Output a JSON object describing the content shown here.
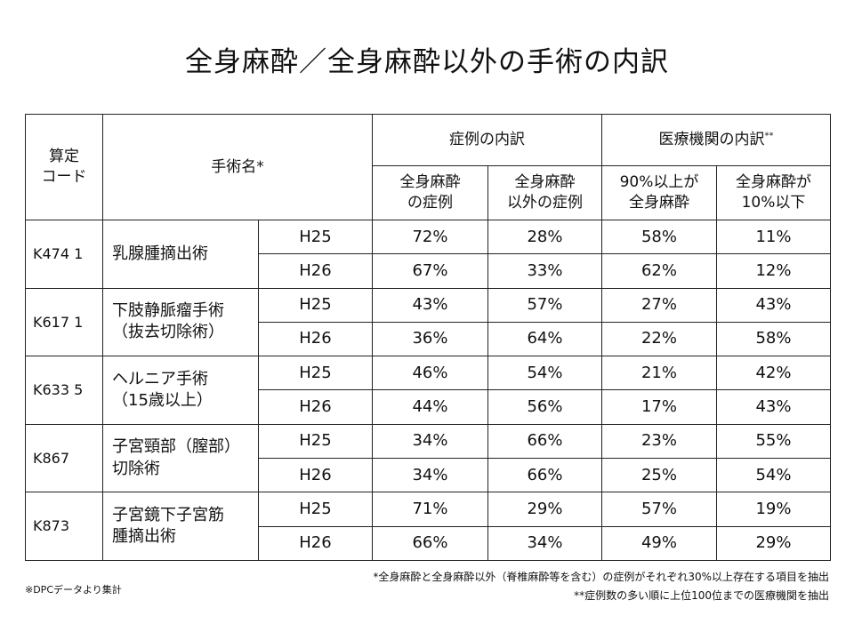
{
  "title": "全身麻酔／全身麻酔以外の手術の内訳",
  "table": {
    "headers": {
      "code": [
        "算定",
        "コード"
      ],
      "name": "手術名*",
      "cases": "症例の内訳",
      "institutions": "医療機関の内訳",
      "institutions_mark": "**",
      "sub": [
        [
          "全身麻酔",
          "の症例"
        ],
        [
          "全身麻酔",
          "以外の症例"
        ],
        [
          "90%以上が",
          "全身麻酔"
        ],
        [
          "全身麻酔が",
          "10%以下"
        ]
      ]
    },
    "groups": [
      {
        "code": "K474 1",
        "name": [
          "乳腺腫摘出術"
        ],
        "rows": [
          {
            "year": "H25",
            "values": [
              "72%",
              "28%",
              "58%",
              "11%"
            ]
          },
          {
            "year": "H26",
            "values": [
              "67%",
              "33%",
              "62%",
              "12%"
            ]
          }
        ]
      },
      {
        "code": "K617 1",
        "name": [
          "下肢静脈瘤手術",
          "（抜去切除術）"
        ],
        "rows": [
          {
            "year": "H25",
            "values": [
              "43%",
              "57%",
              "27%",
              "43%"
            ]
          },
          {
            "year": "H26",
            "values": [
              "36%",
              "64%",
              "22%",
              "58%"
            ]
          }
        ]
      },
      {
        "code": "K633 5",
        "name": [
          "ヘルニア手術",
          "（15歳以上）"
        ],
        "rows": [
          {
            "year": "H25",
            "values": [
              "46%",
              "54%",
              "21%",
              "42%"
            ]
          },
          {
            "year": "H26",
            "values": [
              "44%",
              "56%",
              "17%",
              "43%"
            ]
          }
        ]
      },
      {
        "code": "K867",
        "name": [
          "子宮頸部（膣部）",
          "切除術"
        ],
        "rows": [
          {
            "year": "H25",
            "values": [
              "34%",
              "66%",
              "23%",
              "55%"
            ]
          },
          {
            "year": "H26",
            "values": [
              "34%",
              "66%",
              "25%",
              "54%"
            ]
          }
        ]
      },
      {
        "code": "K873",
        "name": [
          "子宮鏡下子宮筋",
          "腫摘出術"
        ],
        "rows": [
          {
            "year": "H25",
            "values": [
              "71%",
              "29%",
              "57%",
              "19%"
            ]
          },
          {
            "year": "H26",
            "values": [
              "66%",
              "34%",
              "49%",
              "29%"
            ]
          }
        ]
      }
    ]
  },
  "notes": [
    "*全身麻酔と全身麻酔以外（脊椎麻酔等を含む）の症例がそれぞれ30%以上存在する項目を抽出",
    "**症例数の多い順に上位100位までの医療機関を抽出"
  ],
  "source": "※DPCデータより集計"
}
